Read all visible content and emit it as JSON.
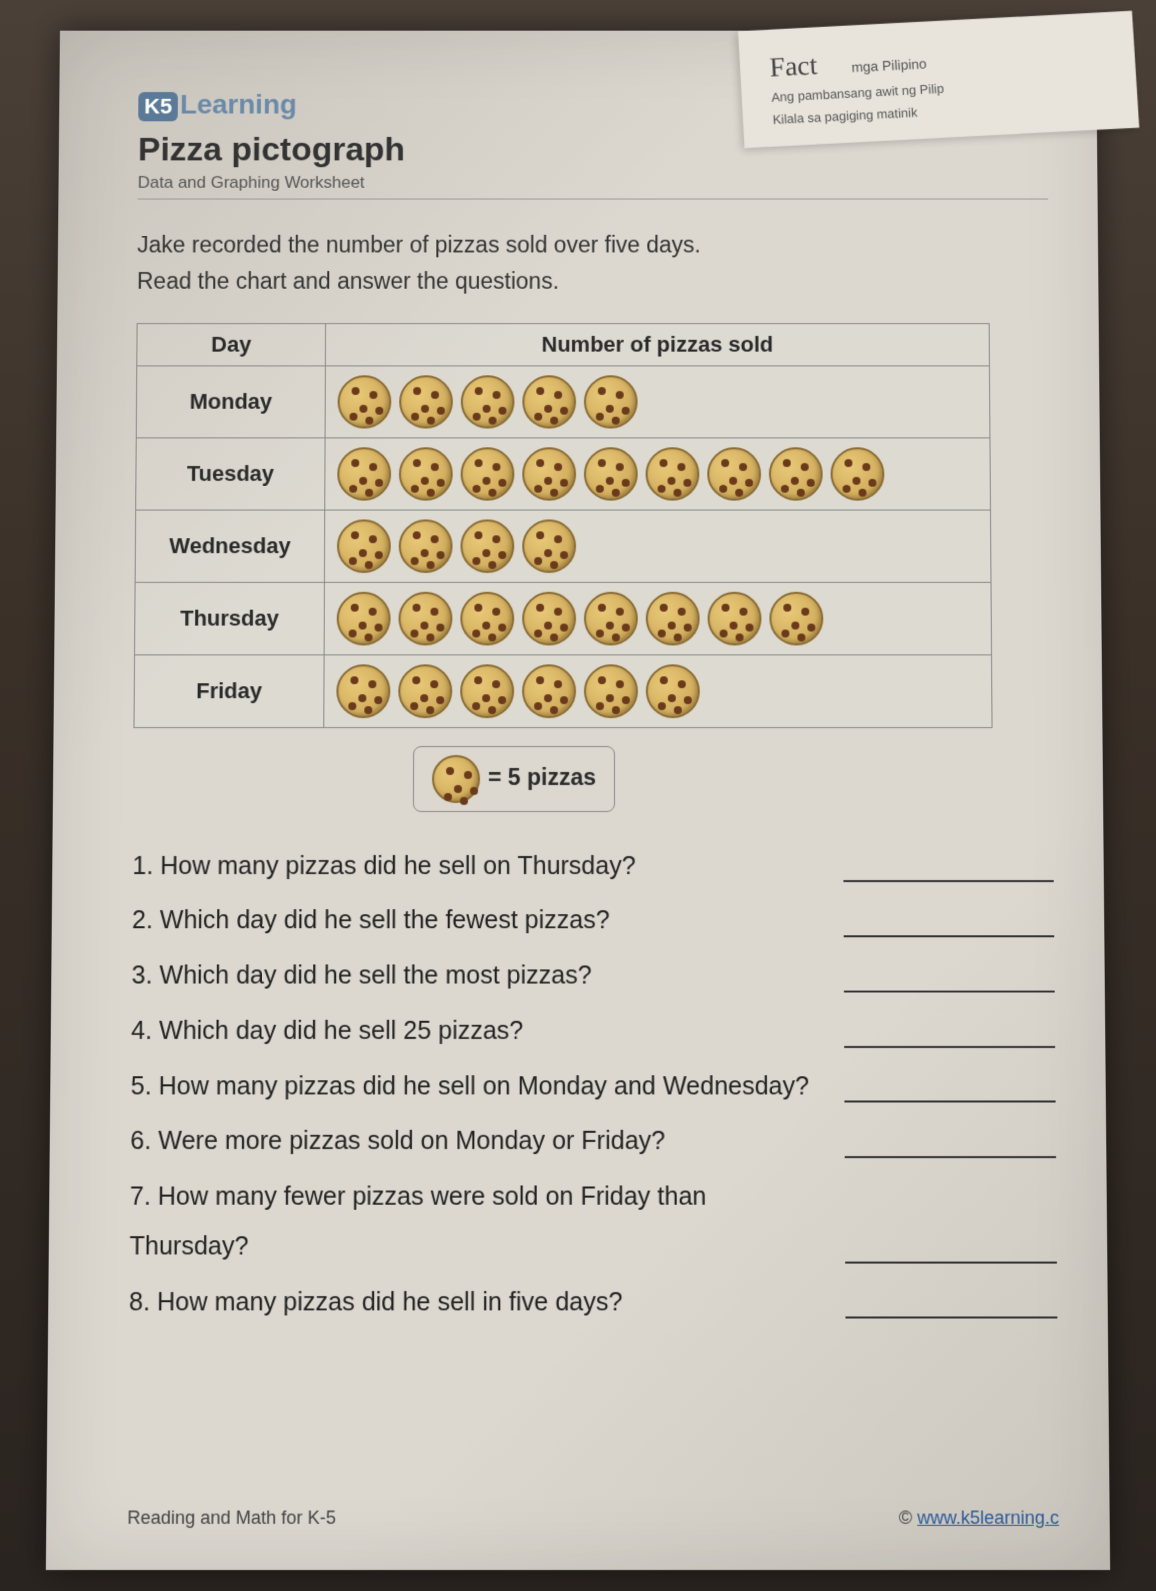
{
  "corner": {
    "fact_label": "Fact",
    "line1": "mga Pilipino",
    "line2": "Ang pambansang awit ng Pilip",
    "line3": "Kilala sa pagiging matinik"
  },
  "brand": {
    "badge": "K5",
    "text": "Learning"
  },
  "title": "Pizza pictograph",
  "subtitle": "Data and Graphing Worksheet",
  "intro_line1": "Jake recorded the number of pizzas sold over five days.",
  "intro_line2": "Read the chart and answer the questions.",
  "table": {
    "headers": {
      "day": "Day",
      "count": "Number of pizzas sold"
    },
    "rows": [
      {
        "day": "Monday",
        "icons": 5
      },
      {
        "day": "Tuesday",
        "icons": 9
      },
      {
        "day": "Wednesday",
        "icons": 4
      },
      {
        "day": "Thursday",
        "icons": 8
      },
      {
        "day": "Friday",
        "icons": 6
      }
    ]
  },
  "legend": {
    "text": "= 5 pizzas"
  },
  "questions": [
    "1. How many pizzas did he sell on Thursday?",
    "2. Which day did he sell the fewest pizzas?",
    "3. Which day did he sell the most pizzas?",
    "4. Which day did he sell 25 pizzas?",
    "5. How many pizzas did he sell on Monday and Wednesday?",
    "6. Were more pizzas sold on Monday or Friday?",
    "7. How many fewer pizzas were sold on Friday than Thursday?",
    "8. How many pizzas did he sell in five days?"
  ],
  "footer": {
    "left": "Reading and Math for K-5",
    "right_prefix": "© ",
    "right_link": "www.k5learning.c"
  },
  "colors": {
    "paper_bg": "#dcd8d0",
    "text": "#2a2a2a",
    "brand": "#6a8aa8",
    "pizza_fill": "#d4b060",
    "pizza_border": "#8a6a30",
    "topping": "#6a3a1a",
    "table_border": "#888888",
    "link": "#2a5a9a"
  }
}
